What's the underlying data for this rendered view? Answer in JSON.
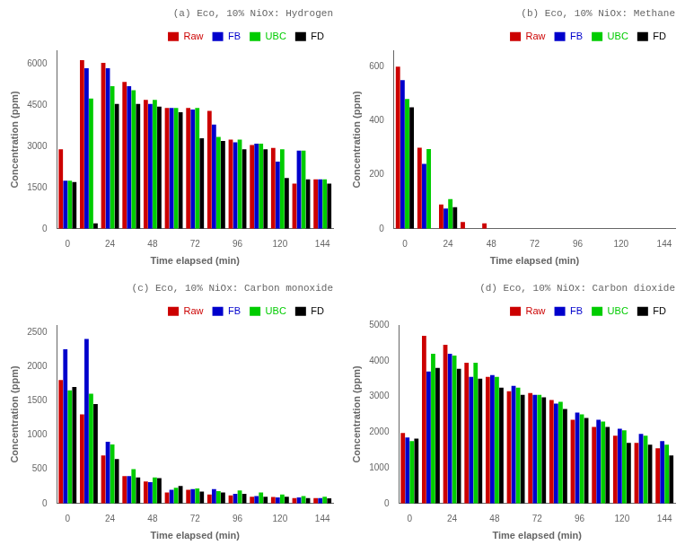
{
  "chart_data": [
    {
      "type": "bar",
      "title": "(a) Eco, 10% NiOx: Hydrogen",
      "xlabel": "Time elapsed (min)",
      "ylabel": "Concentration (ppm)",
      "categories": [
        "0",
        null,
        "24",
        null,
        "48",
        null,
        "72",
        null,
        "96",
        null,
        "120",
        null,
        "144"
      ],
      "series": [
        {
          "name": "Raw",
          "color": "#cc0000",
          "values": [
            2900,
            6150,
            6050,
            5350,
            4700,
            4400,
            4400,
            4300,
            3250,
            3050,
            2950,
            1650,
            1800
          ]
        },
        {
          "name": "FB",
          "color": "#0000cc",
          "values": [
            1750,
            5850,
            5850,
            5200,
            4550,
            4400,
            4350,
            3800,
            3150,
            3100,
            2450,
            2850,
            1800
          ]
        },
        {
          "name": "UBC",
          "color": "#00cc00",
          "values": [
            1750,
            4750,
            5200,
            5050,
            4700,
            4400,
            4400,
            3350,
            3250,
            3100,
            2900,
            2850,
            1800
          ]
        },
        {
          "name": "FD",
          "color": "#000000",
          "values": [
            1700,
            200,
            4550,
            4550,
            4450,
            4250,
            3300,
            3200,
            2900,
            2900,
            1850,
            1800,
            1650
          ]
        }
      ],
      "ylim": [
        0,
        6500
      ],
      "yticks": [
        0,
        1500,
        3000,
        4500,
        6000
      ],
      "grid": false,
      "legend": "upper right"
    },
    {
      "type": "bar",
      "title": "(b) Eco, 10% NiOx: Methane",
      "xlabel": "Time elapsed (min)",
      "ylabel": "Concentration (ppm)",
      "categories": [
        "0",
        null,
        "24",
        null,
        "48",
        null,
        "72",
        null,
        "96",
        null,
        "120",
        null,
        "144"
      ],
      "series": [
        {
          "name": "Raw",
          "color": "#cc0000",
          "values": [
            600,
            300,
            90,
            25,
            20,
            0,
            0,
            0,
            0,
            0,
            0,
            0,
            0
          ]
        },
        {
          "name": "FB",
          "color": "#0000cc",
          "values": [
            550,
            240,
            75,
            0,
            0,
            0,
            0,
            0,
            0,
            0,
            0,
            0,
            0
          ]
        },
        {
          "name": "UBC",
          "color": "#00cc00",
          "values": [
            480,
            295,
            110,
            0,
            0,
            0,
            0,
            0,
            0,
            0,
            0,
            0,
            0
          ]
        },
        {
          "name": "FD",
          "color": "#000000",
          "values": [
            450,
            0,
            80,
            0,
            0,
            0,
            0,
            0,
            0,
            0,
            0,
            0,
            0
          ]
        }
      ],
      "ylim": [
        0,
        660
      ],
      "yticks": [
        0,
        200,
        400,
        600
      ],
      "grid": false,
      "legend": "upper right"
    },
    {
      "type": "bar",
      "title": "(c) Eco, 10% NiOx: Carbon monoxide",
      "xlabel": "Time elapsed (min)",
      "ylabel": "Concentration (ppm)",
      "categories": [
        "0",
        null,
        "24",
        null,
        "48",
        null,
        "72",
        null,
        "96",
        null,
        "120",
        null,
        "144"
      ],
      "series": [
        {
          "name": "Raw",
          "color": "#cc0000",
          "values": [
            1800,
            1300,
            700,
            400,
            320,
            160,
            200,
            130,
            120,
            100,
            95,
            80,
            80
          ]
        },
        {
          "name": "FB",
          "color": "#0000cc",
          "values": [
            2250,
            2400,
            900,
            400,
            310,
            200,
            210,
            210,
            140,
            110,
            90,
            90,
            80
          ]
        },
        {
          "name": "UBC",
          "color": "#00cc00",
          "values": [
            1650,
            1600,
            860,
            500,
            380,
            230,
            220,
            180,
            190,
            160,
            130,
            110,
            100
          ]
        },
        {
          "name": "FD",
          "color": "#000000",
          "values": [
            1700,
            1450,
            650,
            380,
            370,
            255,
            175,
            160,
            140,
            100,
            100,
            80,
            75
          ]
        }
      ],
      "ylim": [
        0,
        2600
      ],
      "yticks": [
        0,
        500,
        1000,
        1500,
        2000,
        2500
      ],
      "grid": false,
      "legend": "upper right"
    },
    {
      "type": "bar",
      "title": "(d) Eco, 10% NiOx: Carbon dioxide",
      "xlabel": "Time elapsed (min)",
      "ylabel": "Concentration (ppm)",
      "categories": [
        "0",
        null,
        "24",
        null,
        "48",
        null,
        "72",
        null,
        "96",
        null,
        "120",
        null,
        "144"
      ],
      "series": [
        {
          "name": "Raw",
          "color": "#cc0000",
          "values": [
            1980,
            4700,
            4450,
            3950,
            3550,
            3150,
            3100,
            2900,
            2350,
            2150,
            1900,
            1700,
            1550
          ]
        },
        {
          "name": "FB",
          "color": "#0000cc",
          "values": [
            1850,
            3700,
            4200,
            3550,
            3600,
            3300,
            3050,
            2800,
            2550,
            2350,
            2100,
            1950,
            1750
          ]
        },
        {
          "name": "UBC",
          "color": "#00cc00",
          "values": [
            1750,
            4200,
            4150,
            3950,
            3550,
            3250,
            3050,
            2850,
            2500,
            2300,
            2050,
            1900,
            1650
          ]
        },
        {
          "name": "FD",
          "color": "#000000",
          "values": [
            1820,
            3800,
            3780,
            3500,
            3250,
            3050,
            2980,
            2650,
            2400,
            2150,
            1700,
            1650,
            1350
          ]
        }
      ],
      "ylim": [
        0,
        5000
      ],
      "yticks": [
        0,
        1000,
        2000,
        3000,
        4000,
        5000
      ],
      "grid": false,
      "legend": "upper right"
    }
  ]
}
